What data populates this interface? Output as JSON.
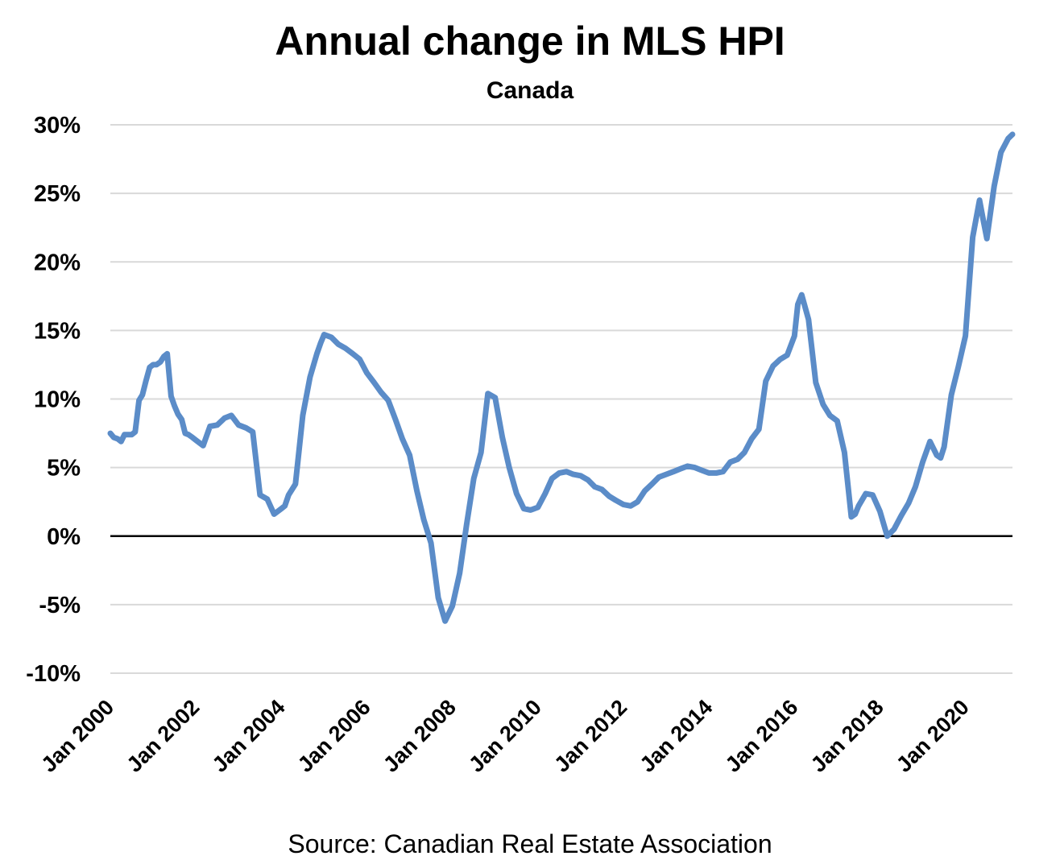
{
  "chart_data": {
    "type": "line",
    "title": "Annual change in MLS HPI",
    "subtitle": "Canada",
    "source": "Source: Canadian Real Estate Association",
    "xlabel": "",
    "ylabel": "",
    "ylim": [
      -10,
      30
    ],
    "y_ticks": [
      "30%",
      "25%",
      "20%",
      "15%",
      "10%",
      "5%",
      "0%",
      "-5%",
      "-10%"
    ],
    "y_tick_values": [
      30,
      25,
      20,
      15,
      10,
      5,
      0,
      -5,
      -10
    ],
    "x_ticks": [
      "Jan 2000",
      "Jan 2002",
      "Jan 2004",
      "Jan 2006",
      "Jan 2008",
      "Jan 2010",
      "Jan 2012",
      "Jan 2014",
      "Jan 2016",
      "Jan 2018",
      "Jan 2020"
    ],
    "x_tick_values": [
      2000,
      2002,
      2004,
      2006,
      2008,
      2010,
      2012,
      2014,
      2016,
      2018,
      2020
    ],
    "xlim": [
      2000,
      2021.1
    ],
    "grid": true,
    "line_color": "#5b8cc8",
    "series": [
      {
        "name": "",
        "x": [
          2000.0,
          2000.08,
          2000.17,
          2000.25,
          2000.33,
          2000.42,
          2000.5,
          2000.58,
          2000.67,
          2000.75,
          2000.83,
          2000.92,
          2001.0,
          2001.08,
          2001.17,
          2001.25,
          2001.33,
          2001.42,
          2001.5,
          2001.58,
          2001.67,
          2001.75,
          2001.83,
          2001.92,
          2002.0,
          2002.17,
          2002.33,
          2002.5,
          2002.67,
          2002.83,
          2003.0,
          2003.17,
          2003.33,
          2003.5,
          2003.67,
          2003.83,
          2004.0,
          2004.08,
          2004.17,
          2004.33,
          2004.5,
          2004.67,
          2004.83,
          2004.92,
          2005.0,
          2005.17,
          2005.33,
          2005.5,
          2005.67,
          2005.83,
          2006.0,
          2006.17,
          2006.33,
          2006.5,
          2006.67,
          2006.83,
          2007.0,
          2007.17,
          2007.33,
          2007.5,
          2007.67,
          2007.83,
          2008.0,
          2008.17,
          2008.33,
          2008.5,
          2008.67,
          2008.83,
          2009.0,
          2009.17,
          2009.33,
          2009.5,
          2009.67,
          2009.83,
          2010.0,
          2010.17,
          2010.33,
          2010.5,
          2010.67,
          2010.83,
          2011.0,
          2011.17,
          2011.33,
          2011.5,
          2011.67,
          2011.83,
          2012.0,
          2012.17,
          2012.33,
          2012.5,
          2012.67,
          2012.83,
          2013.0,
          2013.17,
          2013.33,
          2013.5,
          2013.67,
          2013.83,
          2014.0,
          2014.17,
          2014.33,
          2014.5,
          2014.67,
          2014.83,
          2015.0,
          2015.17,
          2015.33,
          2015.5,
          2015.67,
          2015.83,
          2016.0,
          2016.08,
          2016.17,
          2016.33,
          2016.5,
          2016.67,
          2016.83,
          2017.0,
          2017.17,
          2017.33,
          2017.42,
          2017.5,
          2017.67,
          2017.83,
          2018.0,
          2018.17,
          2018.33,
          2018.5,
          2018.67,
          2018.83,
          2019.0,
          2019.17,
          2019.33,
          2019.42,
          2019.5,
          2019.67,
          2019.83,
          2020.0,
          2020.17,
          2020.33,
          2020.42,
          2020.5,
          2020.67,
          2020.83,
          2021.0,
          2021.1
        ],
        "values": [
          7.5,
          7.2,
          7.1,
          6.9,
          7.4,
          7.4,
          7.4,
          7.6,
          9.9,
          10.3,
          11.3,
          12.3,
          12.5,
          12.5,
          12.7,
          13.1,
          13.3,
          10.2,
          9.5,
          8.9,
          8.5,
          7.5,
          7.4,
          7.2,
          7.0,
          6.6,
          8.0,
          8.1,
          8.6,
          8.8,
          8.1,
          7.9,
          7.6,
          3.0,
          2.7,
          1.6,
          2.0,
          2.2,
          3.0,
          3.8,
          8.8,
          11.6,
          13.3,
          14.1,
          14.7,
          14.5,
          14.0,
          13.7,
          13.3,
          12.9,
          11.9,
          11.2,
          10.5,
          9.9,
          8.5,
          7.1,
          5.9,
          3.3,
          1.2,
          -0.5,
          -4.5,
          -6.2,
          -5.1,
          -2.7,
          0.8,
          4.2,
          6.1,
          10.4,
          10.1,
          7.2,
          5.0,
          3.1,
          2.0,
          1.9,
          2.1,
          3.1,
          4.2,
          4.6,
          4.7,
          4.5,
          4.4,
          4.1,
          3.6,
          3.4,
          2.9,
          2.6,
          2.3,
          2.2,
          2.5,
          3.3,
          3.8,
          4.3,
          4.5,
          4.7,
          4.9,
          5.1,
          5.0,
          4.8,
          4.6,
          4.6,
          4.7,
          5.4,
          5.6,
          6.1,
          7.1,
          7.8,
          11.3,
          12.4,
          12.9,
          13.2,
          14.6,
          16.9,
          17.6,
          15.8,
          11.2,
          9.6,
          8.8,
          8.4,
          6.1,
          1.4,
          1.6,
          2.2,
          3.1,
          3.0,
          1.8,
          0.0,
          0.5,
          1.5,
          2.4,
          3.6,
          5.4,
          6.9,
          5.9,
          5.7,
          6.5,
          10.3,
          12.3,
          14.6,
          21.8,
          24.5,
          23.0,
          21.7,
          25.5,
          28.0,
          29.0,
          29.3
        ]
      }
    ]
  }
}
